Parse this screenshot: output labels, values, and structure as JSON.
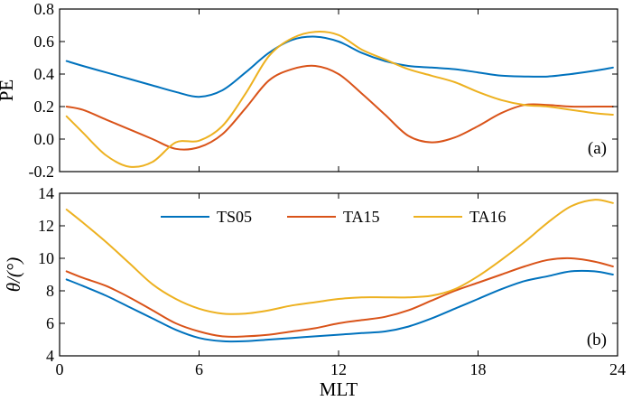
{
  "chart_data": [
    {
      "type": "line",
      "panel_label": "(a)",
      "ylabel": "PE",
      "xlabel": "",
      "xlim": [
        0,
        24
      ],
      "ylim": [
        -0.2,
        0.8
      ],
      "xticks": [
        0,
        6,
        12,
        18,
        24
      ],
      "yticks": [
        -0.2,
        0.0,
        0.2,
        0.4,
        0.6,
        0.8
      ],
      "ytick_labels": [
        "-0.2",
        "0.0",
        "0.2",
        "0.4",
        "0.6",
        "0.8"
      ],
      "x": [
        0.3,
        1,
        2,
        3,
        4,
        5,
        6,
        7,
        8,
        9,
        10,
        11,
        12,
        13,
        14,
        15,
        16,
        17,
        18,
        19,
        20,
        21,
        22,
        23,
        23.8
      ],
      "series": [
        {
          "name": "TS05",
          "color": "#0072BD",
          "values": [
            0.48,
            0.45,
            0.41,
            0.37,
            0.33,
            0.29,
            0.26,
            0.3,
            0.41,
            0.53,
            0.61,
            0.63,
            0.6,
            0.53,
            0.48,
            0.45,
            0.44,
            0.43,
            0.41,
            0.39,
            0.385,
            0.385,
            0.4,
            0.42,
            0.44
          ]
        },
        {
          "name": "TA15",
          "color": "#D95319",
          "values": [
            0.2,
            0.18,
            0.12,
            0.06,
            0.0,
            -0.06,
            -0.05,
            0.03,
            0.19,
            0.36,
            0.43,
            0.45,
            0.4,
            0.28,
            0.15,
            0.02,
            -0.02,
            0.01,
            0.08,
            0.16,
            0.21,
            0.21,
            0.2,
            0.2,
            0.2
          ]
        },
        {
          "name": "TA16",
          "color": "#EDB120",
          "values": [
            0.14,
            0.04,
            -0.1,
            -0.17,
            -0.14,
            -0.02,
            -0.01,
            0.08,
            0.28,
            0.51,
            0.62,
            0.66,
            0.64,
            0.55,
            0.49,
            0.43,
            0.39,
            0.35,
            0.29,
            0.24,
            0.21,
            0.2,
            0.18,
            0.16,
            0.15
          ]
        }
      ]
    },
    {
      "type": "line",
      "panel_label": "(b)",
      "ylabel": "θ/(°)",
      "xlabel": "MLT",
      "xlim": [
        0,
        24
      ],
      "ylim": [
        4,
        14
      ],
      "xticks": [
        0,
        6,
        12,
        18,
        24
      ],
      "yticks": [
        4,
        6,
        8,
        10,
        12,
        14
      ],
      "ytick_labels": [
        "4",
        "6",
        "8",
        "10",
        "12",
        "14"
      ],
      "x": [
        0.3,
        1,
        2,
        3,
        4,
        5,
        6,
        7,
        8,
        9,
        10,
        11,
        12,
        13,
        14,
        15,
        16,
        17,
        18,
        19,
        20,
        21,
        22,
        23,
        23.8
      ],
      "series": [
        {
          "name": "TS05",
          "color": "#0072BD",
          "values": [
            8.7,
            8.3,
            7.7,
            7.0,
            6.3,
            5.6,
            5.1,
            4.9,
            4.9,
            5.0,
            5.1,
            5.2,
            5.3,
            5.4,
            5.5,
            5.8,
            6.3,
            6.9,
            7.5,
            8.1,
            8.6,
            8.9,
            9.2,
            9.2,
            9.0
          ]
        },
        {
          "name": "TA15",
          "color": "#D95319",
          "values": [
            9.2,
            8.8,
            8.3,
            7.6,
            6.8,
            6.0,
            5.5,
            5.2,
            5.2,
            5.3,
            5.5,
            5.7,
            6.0,
            6.2,
            6.4,
            6.8,
            7.4,
            8.0,
            8.5,
            9.0,
            9.5,
            9.9,
            10.0,
            9.8,
            9.5
          ]
        },
        {
          "name": "TA16",
          "color": "#EDB120",
          "values": [
            13.0,
            12.2,
            11.0,
            9.7,
            8.4,
            7.5,
            6.9,
            6.6,
            6.6,
            6.8,
            7.1,
            7.3,
            7.5,
            7.6,
            7.6,
            7.6,
            7.7,
            8.1,
            8.9,
            9.9,
            11.0,
            12.2,
            13.2,
            13.6,
            13.4
          ]
        }
      ],
      "legend": {
        "entries": [
          "TS05",
          "TA15",
          "TA16"
        ],
        "placement": "top-center"
      }
    }
  ]
}
